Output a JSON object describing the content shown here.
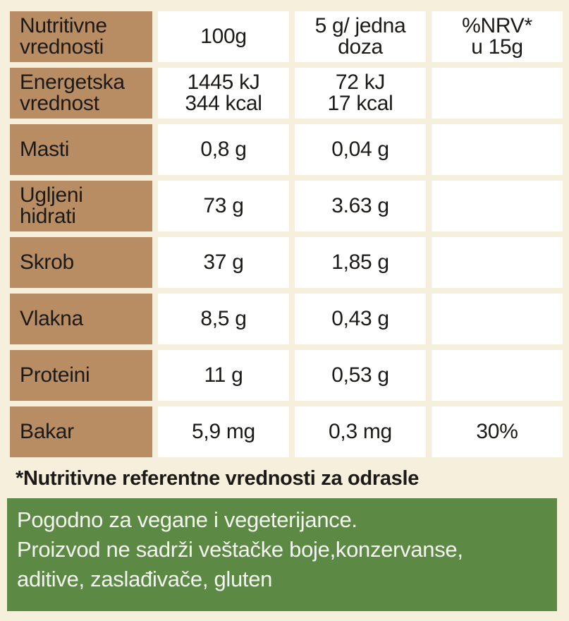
{
  "table": {
    "header": {
      "label": [
        "Nutritivne",
        "vrednosti"
      ],
      "c1": [
        "100g"
      ],
      "c2": [
        "5 g/ jedna",
        "doza"
      ],
      "c3": [
        "%NRV*",
        "u 15g"
      ]
    },
    "rows": [
      {
        "label": [
          "Energetska",
          "vrednost"
        ],
        "c1": [
          "1445 kJ",
          "344 kcal"
        ],
        "c2": [
          "72 kJ",
          "17 kcal"
        ],
        "c3": [
          ""
        ]
      },
      {
        "label": [
          "Masti"
        ],
        "c1": [
          "0,8 g"
        ],
        "c2": [
          "0,04 g"
        ],
        "c3": [
          ""
        ]
      },
      {
        "label": [
          "Ugljeni",
          "hidrati"
        ],
        "c1": [
          "73 g"
        ],
        "c2": [
          "3.63 g"
        ],
        "c3": [
          ""
        ]
      },
      {
        "label": [
          "Skrob"
        ],
        "c1": [
          "37 g"
        ],
        "c2": [
          "1,85 g"
        ],
        "c3": [
          ""
        ]
      },
      {
        "label": [
          "Vlakna"
        ],
        "c1": [
          "8,5 g"
        ],
        "c2": [
          "0,43 g"
        ],
        "c3": [
          ""
        ]
      },
      {
        "label": [
          "Proteini"
        ],
        "c1": [
          "11 g"
        ],
        "c2": [
          "0,53 g"
        ],
        "c3": [
          ""
        ]
      },
      {
        "label": [
          "Bakar"
        ],
        "c1": [
          "5,9 mg"
        ],
        "c2": [
          "0,3 mg"
        ],
        "c3": [
          "30%"
        ]
      }
    ]
  },
  "footnote": "*Nutritivne referentne vrednosti za odrasle",
  "info": {
    "lines": [
      "Pogodno za vegane i vegeterijance.",
      "Proizvod ne sadrži veštačke boje,konzervanse,",
      "aditive, zaslađivače, gluten"
    ]
  },
  "colors": {
    "label_bg": "#b98d64",
    "page_bg": "#f6efdc",
    "green_bg": "#5c8a45"
  }
}
